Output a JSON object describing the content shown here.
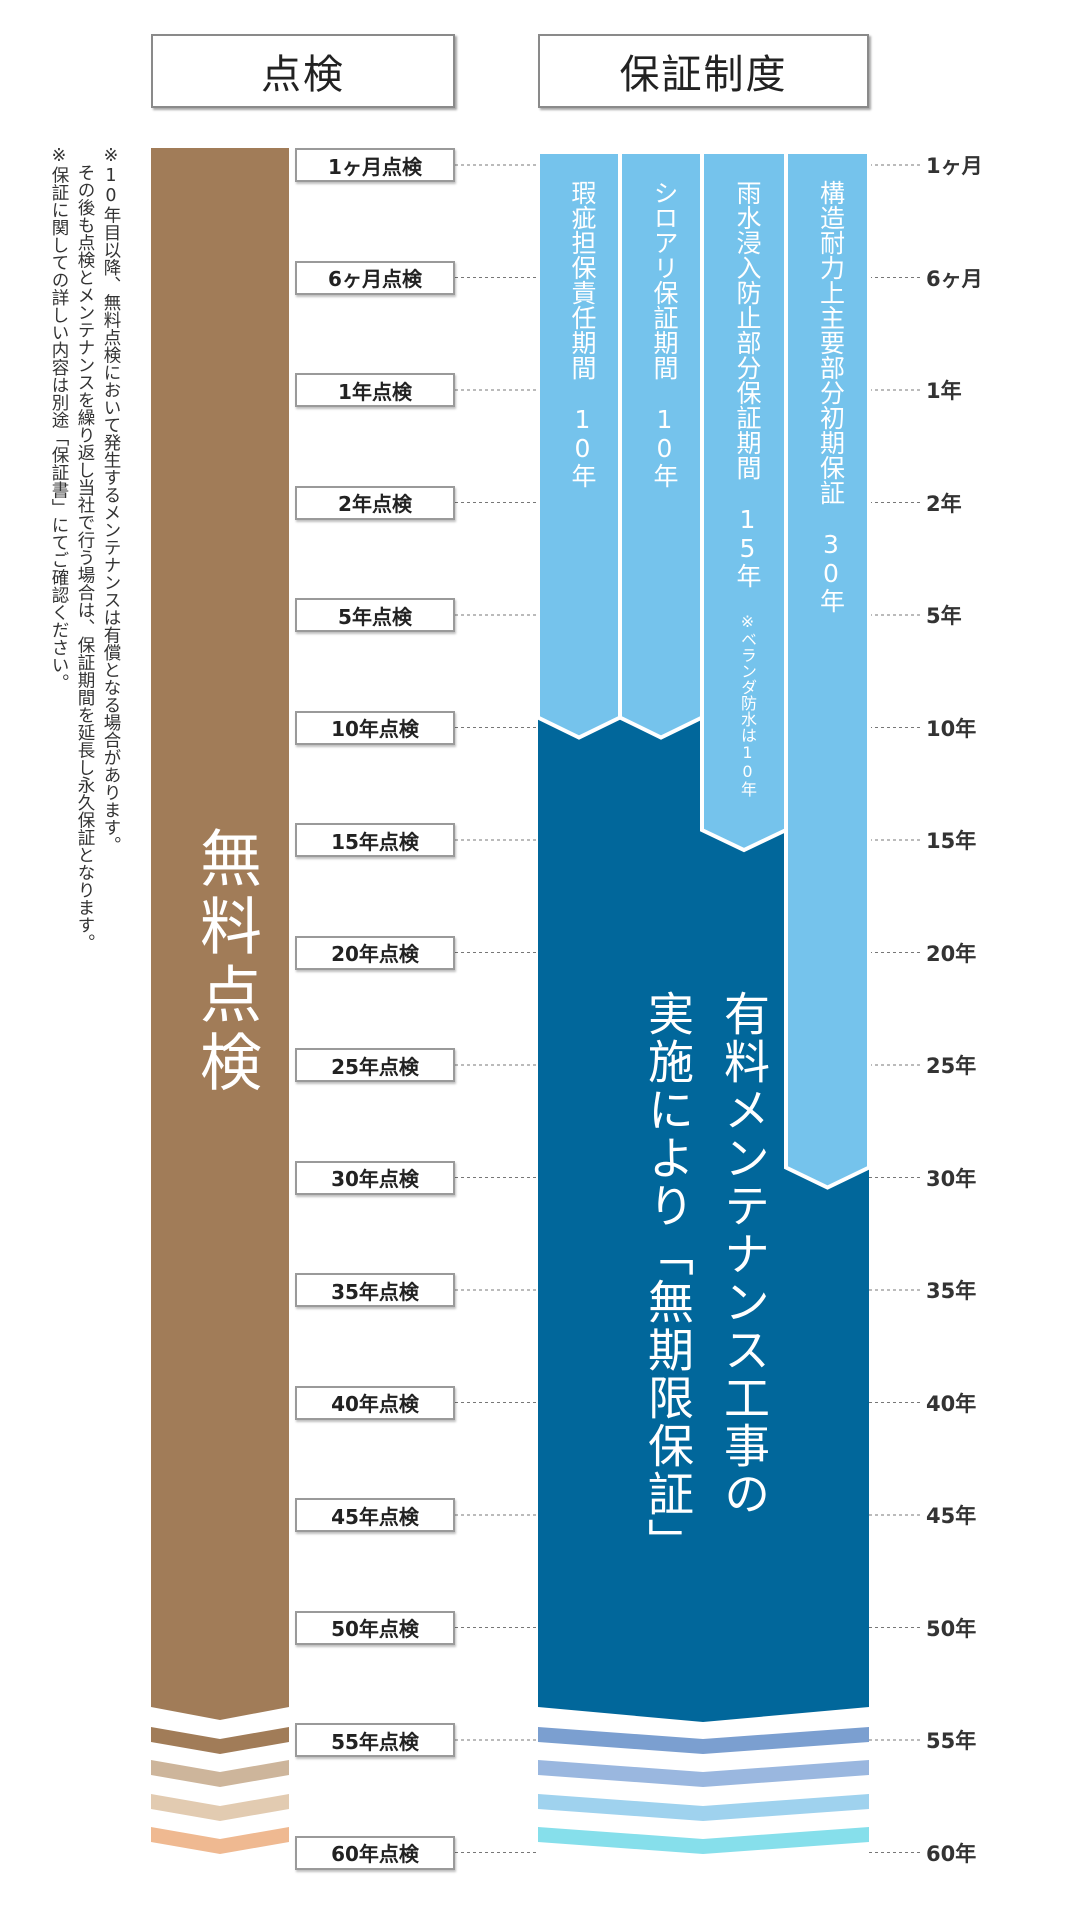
{
  "headers": {
    "inspection": "点検",
    "warranty": "保証制度"
  },
  "notes": [
    "※10年目以降、無料点検において発生するメンテナンスは有償となる場合があります。",
    "　その後も点検とメンテナンスを繰り返し当社で行う場合は、保証期間を延長し永久保証となります。",
    "※保証に関しての詳しい内容は別途「保証書」にてご確認ください。"
  ],
  "free_inspection_label": "無料点検",
  "paid_warranty_label": [
    "有料メンテナンス工事の",
    "実施により「無期限保証」"
  ],
  "timeline": [
    {
      "inspection": "1ヶ月点検",
      "year": "1ヶ月"
    },
    {
      "inspection": "6ヶ月点検",
      "year": "6ヶ月"
    },
    {
      "inspection": "1年点検",
      "year": "1年"
    },
    {
      "inspection": "2年点検",
      "year": "2年"
    },
    {
      "inspection": "5年点検",
      "year": "5年"
    },
    {
      "inspection": "10年点検",
      "year": "10年"
    },
    {
      "inspection": "15年点検",
      "year": "15年"
    },
    {
      "inspection": "20年点検",
      "year": "20年"
    },
    {
      "inspection": "25年点検",
      "year": "25年"
    },
    {
      "inspection": "30年点検",
      "year": "30年"
    },
    {
      "inspection": "35年点検",
      "year": "35年"
    },
    {
      "inspection": "40年点検",
      "year": "40年"
    },
    {
      "inspection": "45年点検",
      "year": "45年"
    },
    {
      "inspection": "50年点検",
      "year": "50年"
    },
    {
      "inspection": "55年点検",
      "year": "55年"
    },
    {
      "inspection": "60年点検",
      "year": "60年"
    }
  ],
  "warranty_periods": [
    {
      "label": "瑕疵担保責任期間　10年",
      "note": "",
      "end_step": 5
    },
    {
      "label": "シロアリ保証期間　10年",
      "note": "",
      "end_step": 5
    },
    {
      "label": "雨水浸入防止部分保証期間　15年",
      "note": "※ベランダ防水は10年",
      "end_step": 6
    },
    {
      "label": "構造耐力上主要部分初期保証　30年",
      "note": "",
      "end_step": 9
    }
  ],
  "colors": {
    "free_brown": "#a17c58",
    "paid_blue": "#01679b",
    "period_light_blue": "#75c3ec",
    "fade_brown": [
      "#a17c58",
      "#cdb59b",
      "#e2cbb1",
      "#efb991"
    ],
    "fade_blue": [
      "#7b9fd0",
      "#9ab7df",
      "#9fd2ee",
      "#86dfeb"
    ]
  }
}
